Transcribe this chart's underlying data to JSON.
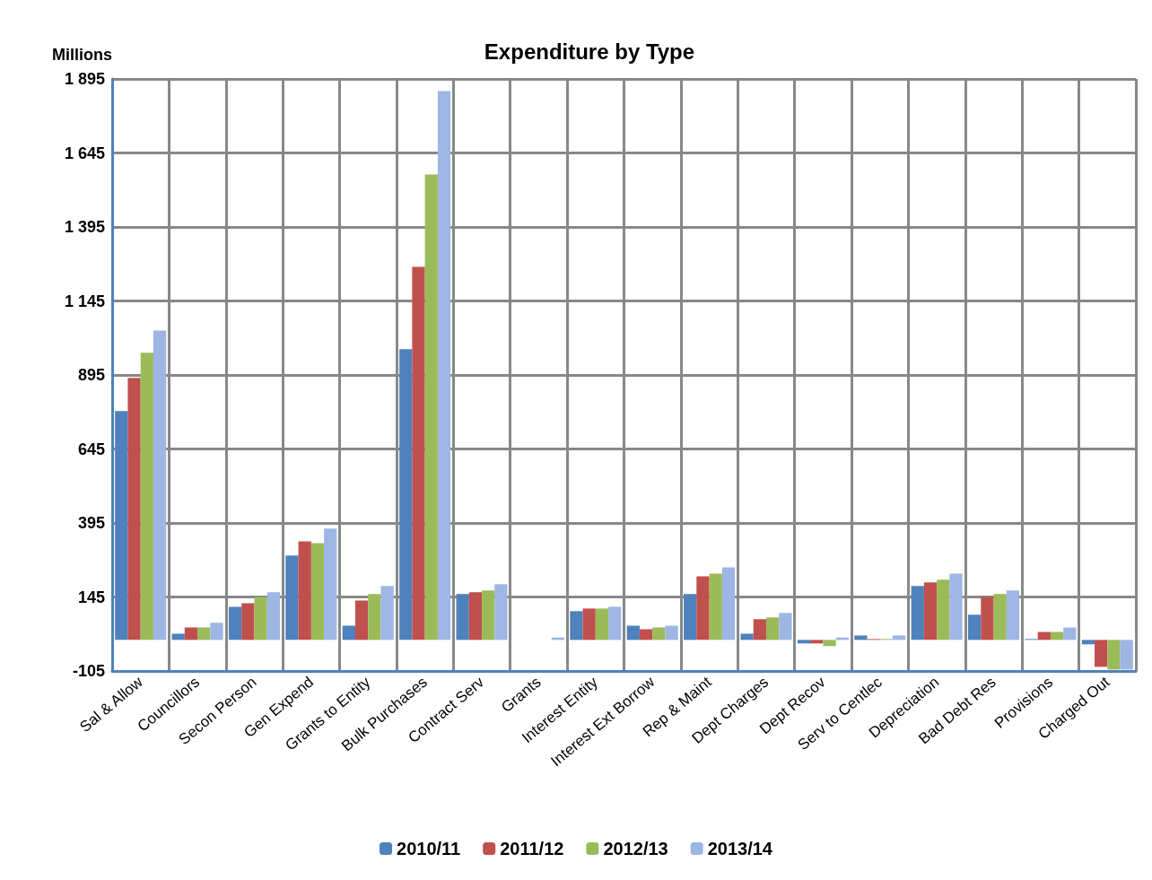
{
  "chart_data": {
    "type": "bar",
    "title": "Expenditure by Type",
    "ylabel": "Millions",
    "categories": [
      "Sal & Allow",
      "Councillors",
      "Secon Person",
      "Gen Expend",
      "Grants to Entity",
      "Bulk Purchases",
      "Contract Serv",
      "Grants",
      "Interest Entity",
      "Interest Ext Borrow",
      "Rep & Maint",
      "Dept Charges",
      "Dept Recov",
      "Serv to Centlec",
      "Depreciation",
      "Bad Debt Res",
      "Provisions",
      "Charged Out"
    ],
    "series": [
      {
        "name": "2010/11",
        "color": "#4f81bd",
        "values": [
          773,
          21,
          112,
          285,
          48,
          982,
          155,
          0,
          97,
          48,
          155,
          21,
          -12,
          15,
          182,
          85,
          3,
          -15
        ]
      },
      {
        "name": "2011/12",
        "color": "#c0504d",
        "values": [
          885,
          42,
          124,
          333,
          133,
          1260,
          161,
          0,
          106,
          36,
          215,
          70,
          -12,
          3,
          194,
          145,
          27,
          -91
        ]
      },
      {
        "name": "2012/13",
        "color": "#9bbb59",
        "values": [
          970,
          42,
          145,
          327,
          155,
          1572,
          167,
          0,
          106,
          42,
          224,
          76,
          -21,
          3,
          203,
          155,
          27,
          -100
        ]
      },
      {
        "name": "2013/14",
        "color": "#9db6e4",
        "values": [
          1045,
          58,
          161,
          376,
          182,
          1854,
          188,
          8,
          112,
          48,
          245,
          91,
          8,
          15,
          224,
          167,
          42,
          -100
        ]
      }
    ],
    "ylim": [
      -105,
      1895
    ],
    "yticks": [
      -105,
      145,
      395,
      645,
      895,
      1145,
      1395,
      1645,
      1895
    ],
    "grid": true,
    "legend": "bottom"
  }
}
